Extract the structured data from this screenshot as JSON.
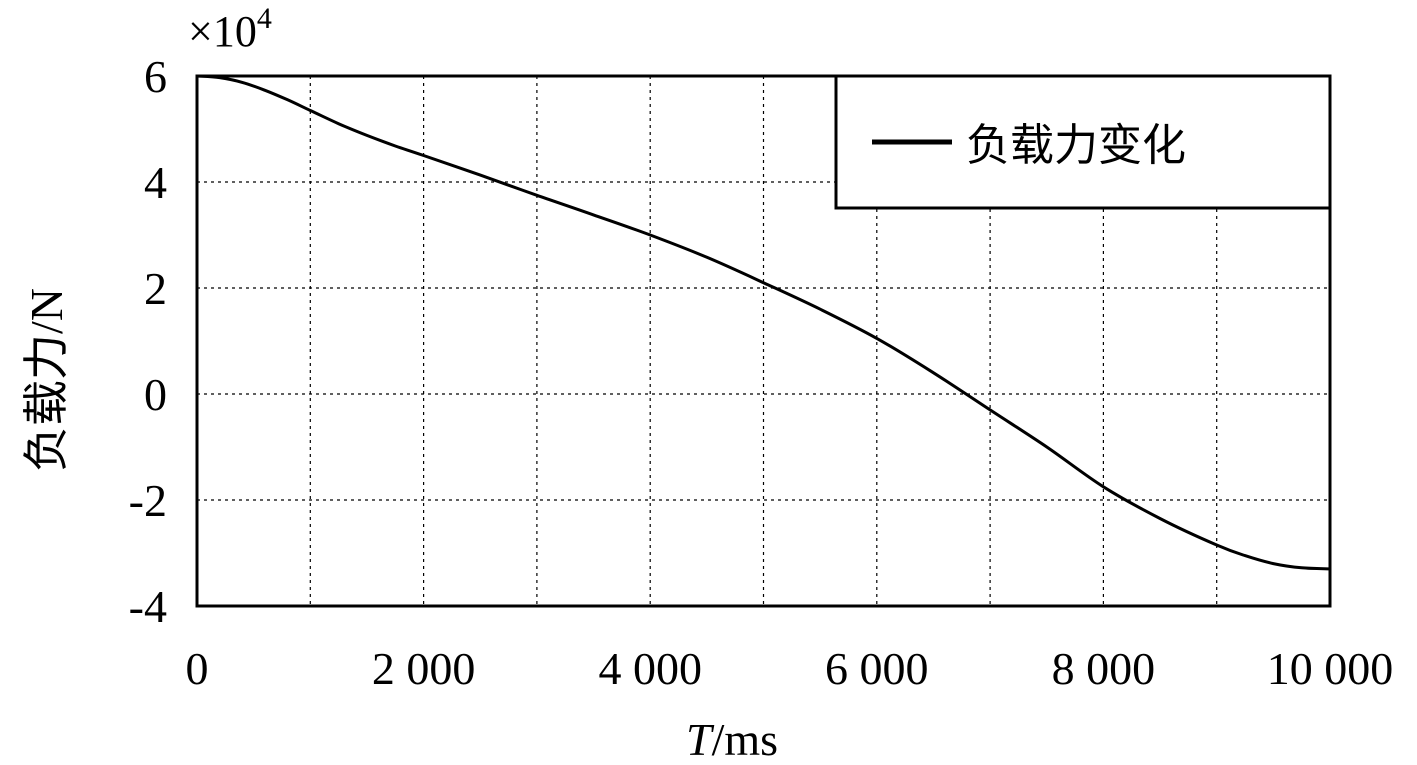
{
  "chart_data": {
    "type": "line",
    "title": "",
    "xlabel_italic": "T",
    "xlabel_rest": "/ms",
    "ylabel": "负载力/N",
    "y_multiplier": "×10",
    "y_multiplier_exp": "4",
    "xlim": [
      0,
      10000
    ],
    "ylim": [
      -4,
      6
    ],
    "grid": true,
    "legend_position": "top-right",
    "x_ticks": [
      0,
      1000,
      2000,
      3000,
      4000,
      5000,
      6000,
      7000,
      8000,
      9000,
      10000
    ],
    "x_tick_labels": [
      {
        "value": 0,
        "label": "0"
      },
      {
        "value": 2000,
        "label": "2 000"
      },
      {
        "value": 4000,
        "label": "4 000"
      },
      {
        "value": 6000,
        "label": "6 000"
      },
      {
        "value": 8000,
        "label": "8 000"
      },
      {
        "value": 10000,
        "label": "10 000"
      }
    ],
    "y_ticks": [
      {
        "value": 6,
        "label": "6"
      },
      {
        "value": 4,
        "label": "4"
      },
      {
        "value": 2,
        "label": "2"
      },
      {
        "value": 0,
        "label": "0"
      },
      {
        "value": -2,
        "label": "-2"
      },
      {
        "value": -4,
        "label": "-4"
      }
    ],
    "series": [
      {
        "name": "负载力变化",
        "color": "#000000",
        "x": [
          0,
          200,
          400,
          600,
          800,
          1000,
          1250,
          1500,
          1750,
          2000,
          2500,
          3000,
          3500,
          4000,
          4500,
          5000,
          5500,
          6000,
          6500,
          7000,
          7500,
          8000,
          8500,
          9000,
          9250,
          9500,
          9750,
          10000
        ],
        "y": [
          6.0,
          5.97,
          5.88,
          5.73,
          5.55,
          5.35,
          5.1,
          4.88,
          4.68,
          4.5,
          4.13,
          3.75,
          3.38,
          3.0,
          2.58,
          2.1,
          1.6,
          1.05,
          0.4,
          -0.3,
          -1.0,
          -1.75,
          -2.35,
          -2.85,
          -3.05,
          -3.2,
          -3.28,
          -3.3
        ]
      }
    ]
  }
}
